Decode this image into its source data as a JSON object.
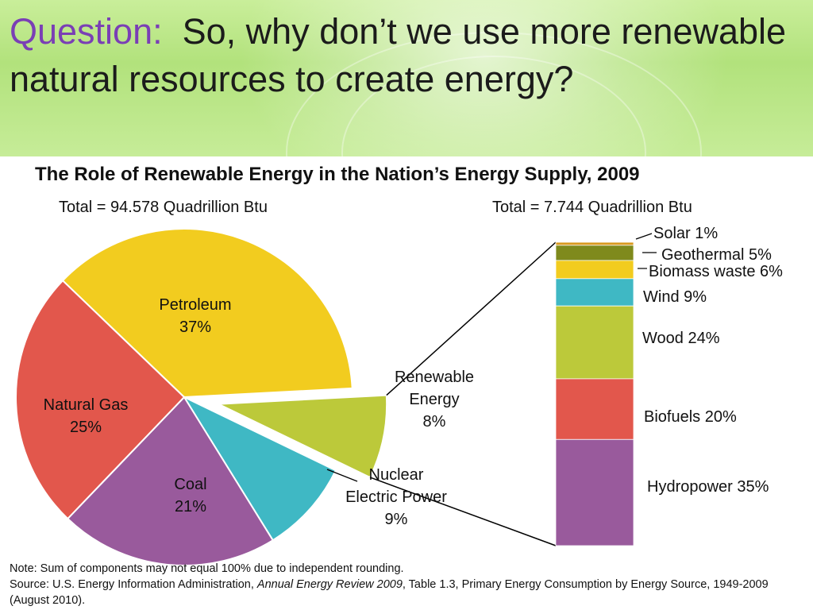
{
  "question": {
    "label": "Question:",
    "text": "So, why don’t we use more renewable natural resources to create energy?"
  },
  "chart_data": {
    "type": "pie",
    "title": "The Role of Renewable Energy in the Nation’s Energy Supply, 2009",
    "pie": {
      "total_label": "Total = 94.578 Quadrillion Btu",
      "slices": [
        {
          "name": "Petroleum",
          "value": 37,
          "label": "37%",
          "color": "#f2cc1f"
        },
        {
          "name": "Renewable Energy",
          "value": 8,
          "label": "8%",
          "color": "#bcc93a",
          "exploded": true
        },
        {
          "name": "Nuclear Electric Power",
          "value": 9,
          "label": "9%",
          "color": "#3fb8c4"
        },
        {
          "name": "Coal",
          "value": 21,
          "label": "21%",
          "color": "#995a9c"
        },
        {
          "name": "Natural Gas",
          "value": 25,
          "label": "25%",
          "color": "#e2574c"
        }
      ]
    },
    "stacked_bar": {
      "total_label": "Total = 7.744 Quadrillion Btu",
      "segments": [
        {
          "name": "Solar",
          "value": 1,
          "label": "Solar 1%",
          "color": "#d99a1e"
        },
        {
          "name": "Geothermal",
          "value": 5,
          "label": "Geothermal 5%",
          "color": "#7f8a1c"
        },
        {
          "name": "Biomass waste",
          "value": 6,
          "label": "Biomass waste 6%",
          "color": "#f2cc1f"
        },
        {
          "name": "Wind",
          "value": 9,
          "label": "Wind 9%",
          "color": "#3fb8c4"
        },
        {
          "name": "Wood",
          "value": 24,
          "label": "Wood 24%",
          "color": "#bcc93a"
        },
        {
          "name": "Biofuels",
          "value": 20,
          "label": "Biofuels 20%",
          "color": "#e2574c"
        },
        {
          "name": "Hydropower",
          "value": 35,
          "label": "Hydropower 35%",
          "color": "#995a9c"
        }
      ]
    }
  },
  "note": {
    "line1": "Note: Sum of components may not equal 100% due to independent rounding.",
    "source_prefix": "Source: U.S. Energy Information Administration, ",
    "source_italic": "Annual Energy Review 2009",
    "source_suffix": ", Table 1.3, Primary Energy Consumption by Energy Source, 1949-2009 (August 2010)."
  }
}
